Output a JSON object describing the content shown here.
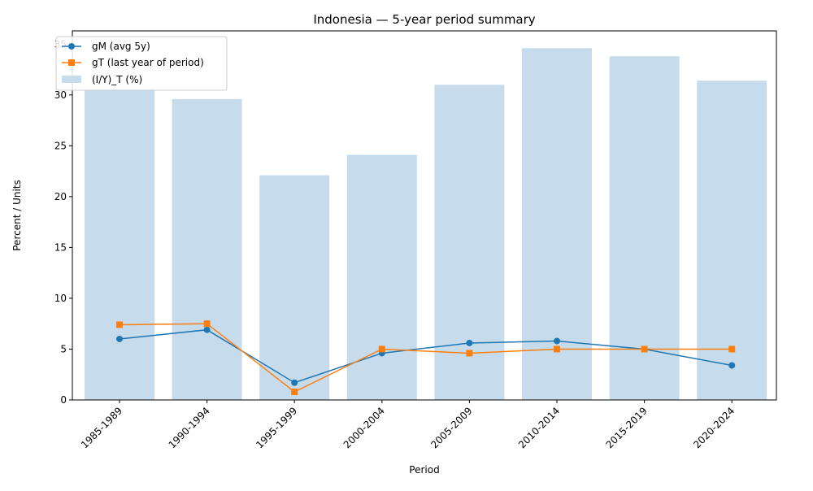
{
  "chart_data": {
    "type": "bar+line",
    "title": "Indonesia — 5-year period summary",
    "xlabel": "Period",
    "ylabel": "Percent / Units",
    "categories": [
      "1985-1989",
      "1990-1994",
      "1995-1999",
      "2000-2004",
      "2005-2009",
      "2010-2014",
      "2015-2019",
      "2020-2024"
    ],
    "ylim": [
      0,
      36.3
    ],
    "yticks": [
      0,
      5,
      10,
      15,
      20,
      25,
      30,
      35
    ],
    "grid": false,
    "legend_position": "upper-left",
    "bars": {
      "name": "(I/Y)_T (%)",
      "color": "#c6dbec",
      "values": [
        30.6,
        29.6,
        22.1,
        24.1,
        31.0,
        34.6,
        33.8,
        31.4
      ]
    },
    "series": [
      {
        "name": "gM (avg 5y)",
        "color": "#1f77b4",
        "marker": "circle",
        "values": [
          6.0,
          6.9,
          1.7,
          4.6,
          5.6,
          5.8,
          5.0,
          3.4
        ]
      },
      {
        "name": "gT (last year of period)",
        "color": "#ff7f0e",
        "marker": "square",
        "values": [
          7.4,
          7.5,
          0.8,
          5.0,
          4.6,
          5.0,
          5.0,
          5.0
        ]
      }
    ]
  }
}
